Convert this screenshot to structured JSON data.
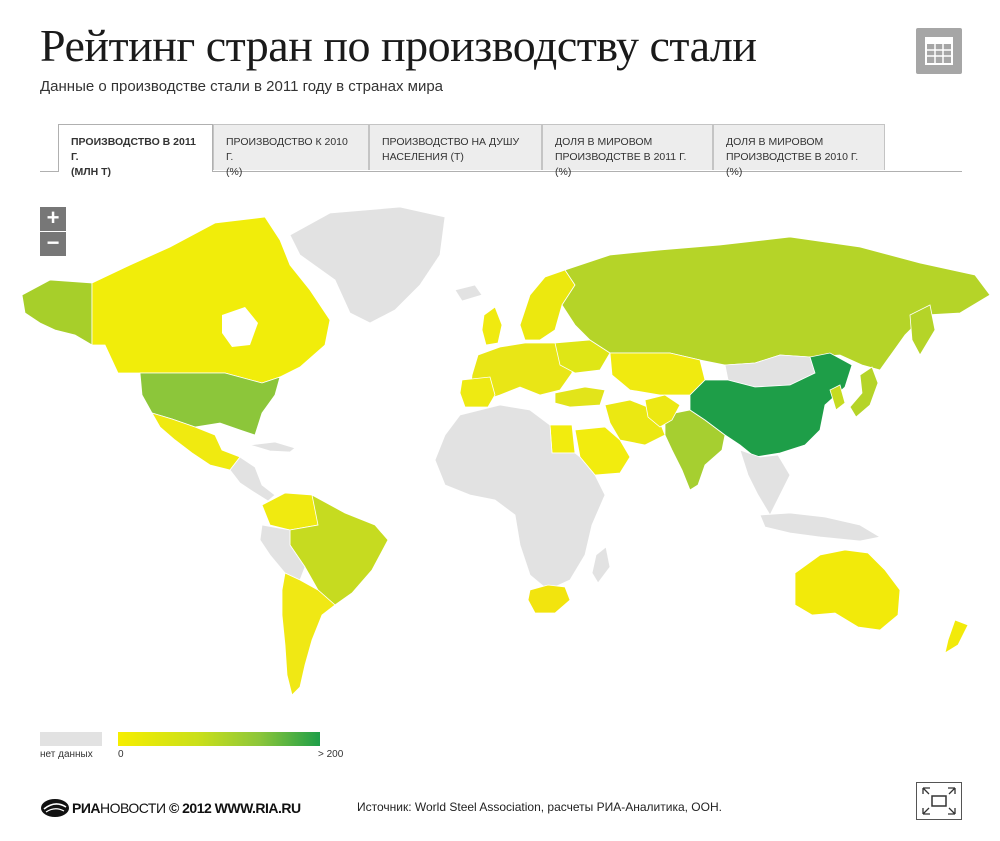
{
  "header": {
    "title": "Рейтинг стран по производству стали",
    "subtitle": "Данные о производстве стали в 2011 году в странах мира"
  },
  "tabs": [
    {
      "line1": "Производство в 2011 г.",
      "line2": "(млн т)",
      "active": true
    },
    {
      "line1": "Производство к 2010 г.",
      "line2": "(%)",
      "active": false
    },
    {
      "line1": "Производство на душу",
      "line2": "населения (т)",
      "active": false
    },
    {
      "line1": "Доля в мировом",
      "line2": "производстве в 2011 г. (%)",
      "active": false
    },
    {
      "line1": "Доля в мировом",
      "line2": "производстве в 2010 г. (%)",
      "active": false
    }
  ],
  "map": {
    "zoom_in": "+",
    "zoom_out": "−",
    "colors": {
      "no_data": "#e2e2e2",
      "low": "#f6ee00",
      "mid_low": "#dde71a",
      "mid": "#bcd62a",
      "mid_high": "#8cc63a",
      "high": "#1e9e48",
      "ocean": "#ffffff",
      "border": "#ffffff"
    },
    "highlighted_regions": [
      {
        "region": "China",
        "level": "high"
      },
      {
        "region": "USA",
        "level": "mid_high"
      },
      {
        "region": "Russia",
        "level": "mid"
      },
      {
        "region": "Japan",
        "level": "mid"
      },
      {
        "region": "India",
        "level": "mid"
      },
      {
        "region": "Brazil",
        "level": "mid_low"
      },
      {
        "region": "Canada",
        "level": "low"
      },
      {
        "region": "Australia",
        "level": "low"
      }
    ]
  },
  "legend": {
    "no_data_label": "нет данных",
    "min_label": "0",
    "max_label": "> 200"
  },
  "footer": {
    "logo_bold": "РИА",
    "logo_thin": "НОВОСТИ",
    "copyright": "© 2012 WWW.RIA.RU",
    "source": "Источник: World Steel Association, расчеты РИА-Аналитика, ООН."
  },
  "icons": {
    "table": "table-icon",
    "fullscreen": "fullscreen-icon",
    "logo": "ria-logo-icon"
  }
}
